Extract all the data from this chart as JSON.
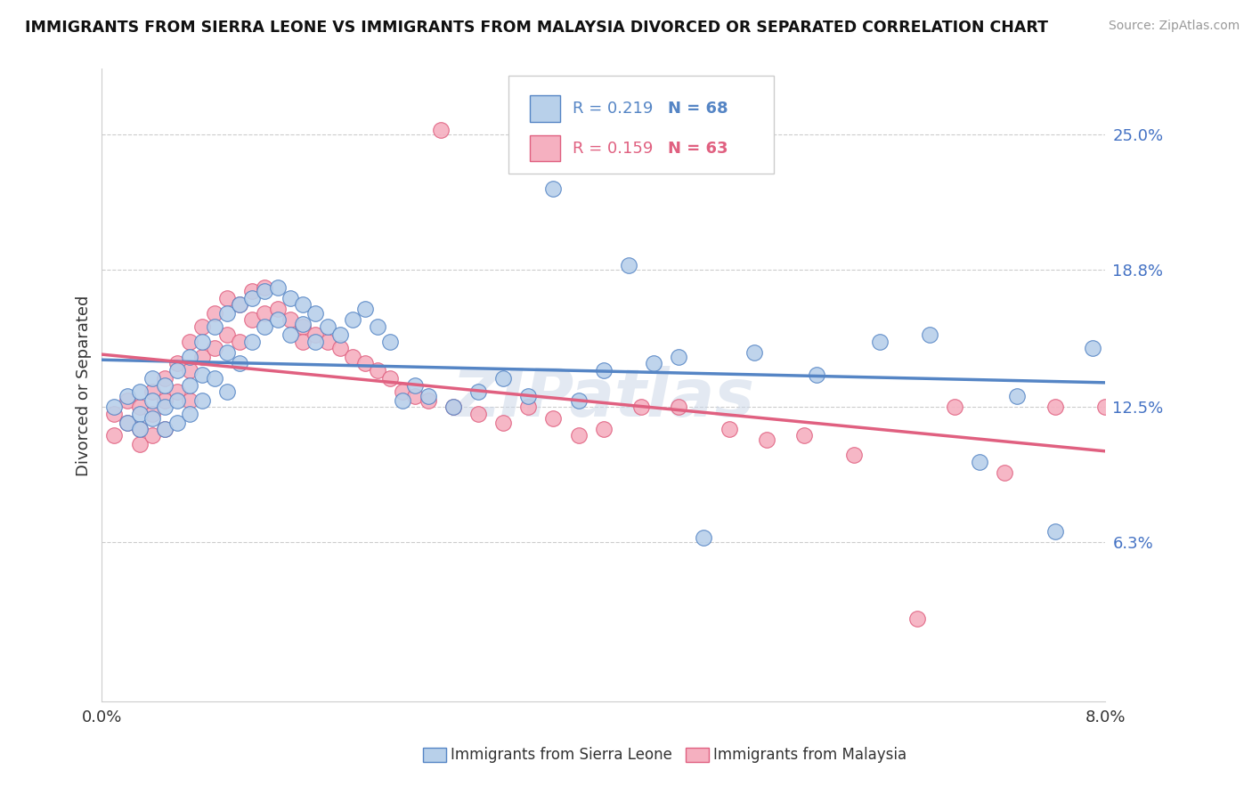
{
  "title": "IMMIGRANTS FROM SIERRA LEONE VS IMMIGRANTS FROM MALAYSIA DIVORCED OR SEPARATED CORRELATION CHART",
  "source": "Source: ZipAtlas.com",
  "ylabel": "Divorced or Separated",
  "ytick_labels": [
    "25.0%",
    "18.8%",
    "12.5%",
    "6.3%"
  ],
  "ytick_values": [
    0.25,
    0.188,
    0.125,
    0.063
  ],
  "xmin": 0.0,
  "xmax": 0.08,
  "ymin": -0.01,
  "ymax": 0.28,
  "legend_r1": "R = 0.219",
  "legend_n1": "N = 68",
  "legend_r2": "R = 0.159",
  "legend_n2": "N = 63",
  "color_sierra": "#b8d0ea",
  "color_malaysia": "#f5b0c0",
  "color_sierra_line": "#5585c5",
  "color_malaysia_line": "#e06080",
  "color_text": "#333333",
  "color_ytick": "#4472C4",
  "watermark": "ZIPatlas",
  "sierra_x": [
    0.001,
    0.002,
    0.002,
    0.003,
    0.003,
    0.003,
    0.004,
    0.004,
    0.004,
    0.005,
    0.005,
    0.005,
    0.006,
    0.006,
    0.006,
    0.007,
    0.007,
    0.007,
    0.008,
    0.008,
    0.008,
    0.009,
    0.009,
    0.01,
    0.01,
    0.01,
    0.011,
    0.011,
    0.012,
    0.012,
    0.013,
    0.013,
    0.014,
    0.014,
    0.015,
    0.015,
    0.016,
    0.016,
    0.017,
    0.017,
    0.018,
    0.019,
    0.02,
    0.021,
    0.022,
    0.023,
    0.024,
    0.025,
    0.026,
    0.028,
    0.03,
    0.032,
    0.034,
    0.036,
    0.038,
    0.04,
    0.042,
    0.044,
    0.046,
    0.048,
    0.052,
    0.057,
    0.062,
    0.066,
    0.07,
    0.073,
    0.076,
    0.079
  ],
  "sierra_y": [
    0.125,
    0.13,
    0.118,
    0.122,
    0.132,
    0.115,
    0.128,
    0.12,
    0.138,
    0.125,
    0.135,
    0.115,
    0.142,
    0.128,
    0.118,
    0.148,
    0.135,
    0.122,
    0.155,
    0.14,
    0.128,
    0.162,
    0.138,
    0.168,
    0.15,
    0.132,
    0.172,
    0.145,
    0.175,
    0.155,
    0.178,
    0.162,
    0.18,
    0.165,
    0.175,
    0.158,
    0.172,
    0.163,
    0.168,
    0.155,
    0.162,
    0.158,
    0.165,
    0.17,
    0.162,
    0.155,
    0.128,
    0.135,
    0.13,
    0.125,
    0.132,
    0.138,
    0.13,
    0.225,
    0.128,
    0.142,
    0.19,
    0.145,
    0.148,
    0.065,
    0.15,
    0.14,
    0.155,
    0.158,
    0.1,
    0.13,
    0.068,
    0.152
  ],
  "malaysia_x": [
    0.001,
    0.001,
    0.002,
    0.002,
    0.003,
    0.003,
    0.003,
    0.004,
    0.004,
    0.004,
    0.005,
    0.005,
    0.005,
    0.006,
    0.006,
    0.007,
    0.007,
    0.007,
    0.008,
    0.008,
    0.009,
    0.009,
    0.01,
    0.01,
    0.011,
    0.011,
    0.012,
    0.012,
    0.013,
    0.013,
    0.014,
    0.015,
    0.016,
    0.016,
    0.017,
    0.018,
    0.019,
    0.02,
    0.021,
    0.022,
    0.023,
    0.024,
    0.025,
    0.026,
    0.027,
    0.028,
    0.03,
    0.032,
    0.034,
    0.036,
    0.038,
    0.04,
    0.043,
    0.046,
    0.05,
    0.053,
    0.056,
    0.06,
    0.065,
    0.068,
    0.072,
    0.076,
    0.08
  ],
  "malaysia_y": [
    0.122,
    0.112,
    0.128,
    0.118,
    0.125,
    0.115,
    0.108,
    0.132,
    0.122,
    0.112,
    0.138,
    0.128,
    0.115,
    0.145,
    0.132,
    0.155,
    0.142,
    0.128,
    0.162,
    0.148,
    0.168,
    0.152,
    0.175,
    0.158,
    0.172,
    0.155,
    0.178,
    0.165,
    0.18,
    0.168,
    0.17,
    0.165,
    0.162,
    0.155,
    0.158,
    0.155,
    0.152,
    0.148,
    0.145,
    0.142,
    0.138,
    0.132,
    0.13,
    0.128,
    0.252,
    0.125,
    0.122,
    0.118,
    0.125,
    0.12,
    0.112,
    0.115,
    0.125,
    0.125,
    0.115,
    0.11,
    0.112,
    0.103,
    0.028,
    0.125,
    0.095,
    0.125,
    0.125
  ]
}
